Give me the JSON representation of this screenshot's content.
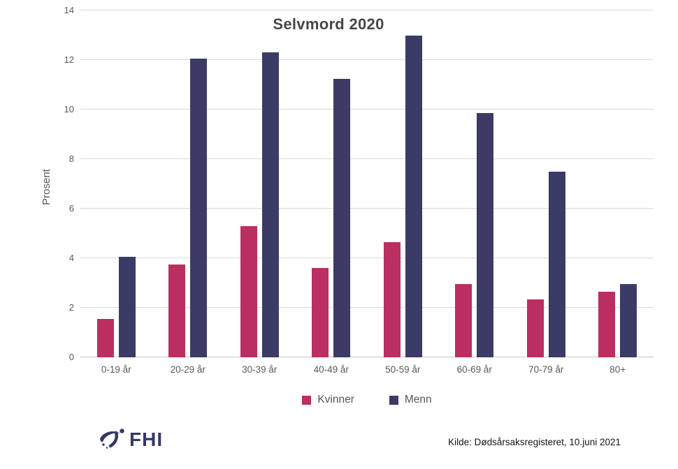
{
  "chart_data": {
    "type": "bar",
    "title": "Selvmord 2020",
    "xlabel": "",
    "ylabel": "Prosent",
    "categories": [
      "0-19 år",
      "20-29 år",
      "30-39 år",
      "40-49 år",
      "50-59 år",
      "60-69 år",
      "70-79 år",
      "80+"
    ],
    "series": [
      {
        "name": "Kvinner",
        "color": "#bb2e61",
        "values": [
          1.55,
          3.75,
          5.3,
          3.6,
          4.65,
          2.95,
          2.35,
          2.65
        ]
      },
      {
        "name": "Menn",
        "color": "#3c3b66",
        "values": [
          4.05,
          12.05,
          12.3,
          11.25,
          13.0,
          9.85,
          7.5,
          2.95
        ]
      }
    ],
    "ylim": [
      0,
      14
    ],
    "yticks": [
      0,
      2,
      4,
      6,
      8,
      10,
      12,
      14
    ],
    "grid": true,
    "legend_position": "bottom"
  },
  "footer": {
    "logo_text": "FHI",
    "logo_color": "#333a66",
    "source": "Kilde: Dødsårsaksregisteret, 10.juni 2021"
  }
}
